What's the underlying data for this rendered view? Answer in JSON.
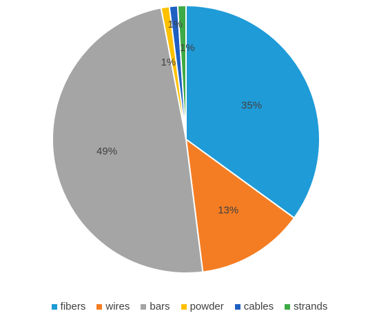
{
  "chart_data": {
    "type": "pie",
    "categories": [
      "fibers",
      "wires",
      "bars",
      "powder",
      "cables",
      "strands"
    ],
    "values": [
      35,
      13,
      49,
      1,
      1,
      1
    ],
    "data_labels": [
      "35%",
      "13%",
      "49%",
      "1%",
      "1%",
      "1%"
    ],
    "colors": [
      "#1F9BD7",
      "#F47D23",
      "#A5A5A5",
      "#FFC000",
      "#1F5FC2",
      "#3DAA47"
    ],
    "start_angle_deg": 0,
    "direction": "clockwise",
    "legend": "bottom"
  }
}
